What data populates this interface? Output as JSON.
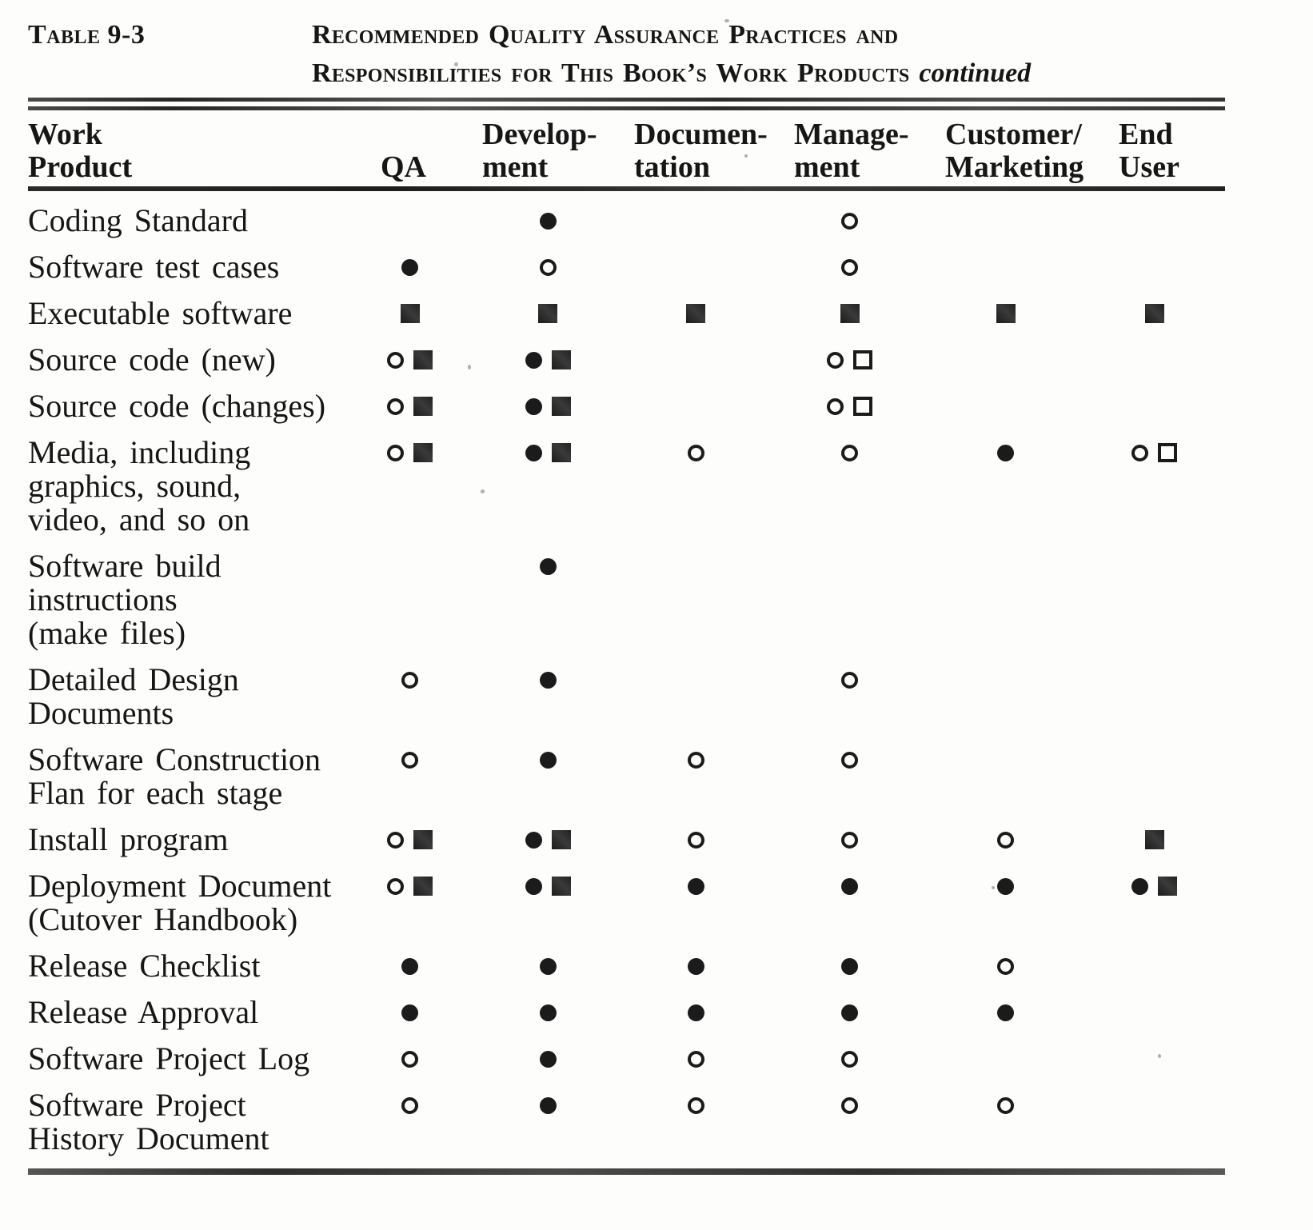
{
  "page": {
    "label": "Table 9-3",
    "title_line1": "Recommended Quality Assurance Practices and",
    "title_line2": "Responsibilities for This Book’s Work Products",
    "title_continued": "continued"
  },
  "colors": {
    "ink": "#161616",
    "paper": "#fdfdfc",
    "rule": "#3a3a3a"
  },
  "symbol_legend": [
    "filled-circle",
    "open-circle",
    "filled-square",
    "open-square"
  ],
  "table": {
    "columns": [
      {
        "key": "product",
        "line1": "Work",
        "line2": "Product"
      },
      {
        "key": "qa",
        "line1": "",
        "line2": "QA"
      },
      {
        "key": "development",
        "line1": "Develop-",
        "line2": "ment"
      },
      {
        "key": "documentation",
        "line1": "Documen-",
        "line2": "tation"
      },
      {
        "key": "management",
        "line1": "Manage-",
        "line2": "ment"
      },
      {
        "key": "customer_marketing",
        "line1": "Customer/",
        "line2": "Marketing"
      },
      {
        "key": "end_user",
        "line1": "End",
        "line2": "User"
      }
    ],
    "rows": [
      {
        "product_lines": [
          "Coding Standard"
        ],
        "symbols": {
          "qa": [],
          "development": [
            "filled-circle"
          ],
          "documentation": [],
          "management": [
            "open-circle"
          ],
          "customer_marketing": [],
          "end_user": []
        }
      },
      {
        "product_lines": [
          "Software test cases"
        ],
        "symbols": {
          "qa": [
            "filled-circle"
          ],
          "development": [
            "open-circle"
          ],
          "documentation": [],
          "management": [
            "open-circle"
          ],
          "customer_marketing": [],
          "end_user": []
        }
      },
      {
        "product_lines": [
          "Executable software"
        ],
        "symbols": {
          "qa": [
            "filled-square"
          ],
          "development": [
            "filled-square"
          ],
          "documentation": [
            "filled-square"
          ],
          "management": [
            "filled-square"
          ],
          "customer_marketing": [
            "filled-square"
          ],
          "end_user": [
            "filled-square"
          ]
        }
      },
      {
        "product_lines": [
          "Source code (new)"
        ],
        "symbols": {
          "qa": [
            "open-circle",
            "filled-square"
          ],
          "development": [
            "filled-circle",
            "filled-square"
          ],
          "documentation": [],
          "management": [
            "open-circle",
            "open-square"
          ],
          "customer_marketing": [],
          "end_user": []
        }
      },
      {
        "product_lines": [
          "Source code (changes)"
        ],
        "symbols": {
          "qa": [
            "open-circle",
            "filled-square"
          ],
          "development": [
            "filled-circle",
            "filled-square"
          ],
          "documentation": [],
          "management": [
            "open-circle",
            "open-square"
          ],
          "customer_marketing": [],
          "end_user": []
        }
      },
      {
        "product_lines": [
          "Media, including",
          "graphics, sound,",
          "video, and so on"
        ],
        "symbols": {
          "qa": [
            "open-circle",
            "filled-square"
          ],
          "development": [
            "filled-circle",
            "filled-square"
          ],
          "documentation": [
            "open-circle"
          ],
          "management": [
            "open-circle"
          ],
          "customer_marketing": [
            "filled-circle"
          ],
          "end_user": [
            "open-circle",
            "open-square"
          ]
        }
      },
      {
        "product_lines": [
          "Software build",
          "instructions",
          "(make files)"
        ],
        "symbols": {
          "qa": [],
          "development": [
            "filled-circle"
          ],
          "documentation": [],
          "management": [],
          "customer_marketing": [],
          "end_user": []
        }
      },
      {
        "product_lines": [
          "Detailed Design",
          "Documents"
        ],
        "symbols": {
          "qa": [
            "open-circle"
          ],
          "development": [
            "filled-circle"
          ],
          "documentation": [],
          "management": [
            "open-circle"
          ],
          "customer_marketing": [],
          "end_user": []
        }
      },
      {
        "product_lines": [
          "Software Construction",
          "Flan for each stage"
        ],
        "symbols": {
          "qa": [
            "open-circle"
          ],
          "development": [
            "filled-circle"
          ],
          "documentation": [
            "open-circle"
          ],
          "management": [
            "open-circle"
          ],
          "customer_marketing": [],
          "end_user": []
        }
      },
      {
        "product_lines": [
          "Install program"
        ],
        "symbols": {
          "qa": [
            "open-circle",
            "filled-square"
          ],
          "development": [
            "filled-circle",
            "filled-square"
          ],
          "documentation": [
            "open-circle"
          ],
          "management": [
            "open-circle"
          ],
          "customer_marketing": [
            "open-circle"
          ],
          "end_user": [
            "filled-square"
          ]
        }
      },
      {
        "product_lines": [
          "Deployment Document",
          "(Cutover Handbook)"
        ],
        "symbols": {
          "qa": [
            "open-circle",
            "filled-square"
          ],
          "development": [
            "filled-circle",
            "filled-square"
          ],
          "documentation": [
            "filled-circle"
          ],
          "management": [
            "filled-circle"
          ],
          "customer_marketing": [
            "filled-circle"
          ],
          "end_user": [
            "filled-circle",
            "filled-square"
          ]
        }
      },
      {
        "product_lines": [
          "Release Checklist"
        ],
        "symbols": {
          "qa": [
            "filled-circle"
          ],
          "development": [
            "filled-circle"
          ],
          "documentation": [
            "filled-circle"
          ],
          "management": [
            "filled-circle"
          ],
          "customer_marketing": [
            "open-circle"
          ],
          "end_user": []
        }
      },
      {
        "product_lines": [
          "Release Approval"
        ],
        "symbols": {
          "qa": [
            "filled-circle"
          ],
          "development": [
            "filled-circle"
          ],
          "documentation": [
            "filled-circle"
          ],
          "management": [
            "filled-circle"
          ],
          "customer_marketing": [
            "filled-circle"
          ],
          "end_user": []
        }
      },
      {
        "product_lines": [
          "Software Project Log"
        ],
        "symbols": {
          "qa": [
            "open-circle"
          ],
          "development": [
            "filled-circle"
          ],
          "documentation": [
            "open-circle"
          ],
          "management": [
            "open-circle"
          ],
          "customer_marketing": [],
          "end_user": []
        }
      },
      {
        "product_lines": [
          "Software Project",
          "History Document"
        ],
        "symbols": {
          "qa": [
            "open-circle"
          ],
          "development": [
            "filled-circle"
          ],
          "documentation": [
            "open-circle"
          ],
          "management": [
            "open-circle"
          ],
          "customer_marketing": [
            "open-circle"
          ],
          "end_user": []
        }
      }
    ]
  }
}
